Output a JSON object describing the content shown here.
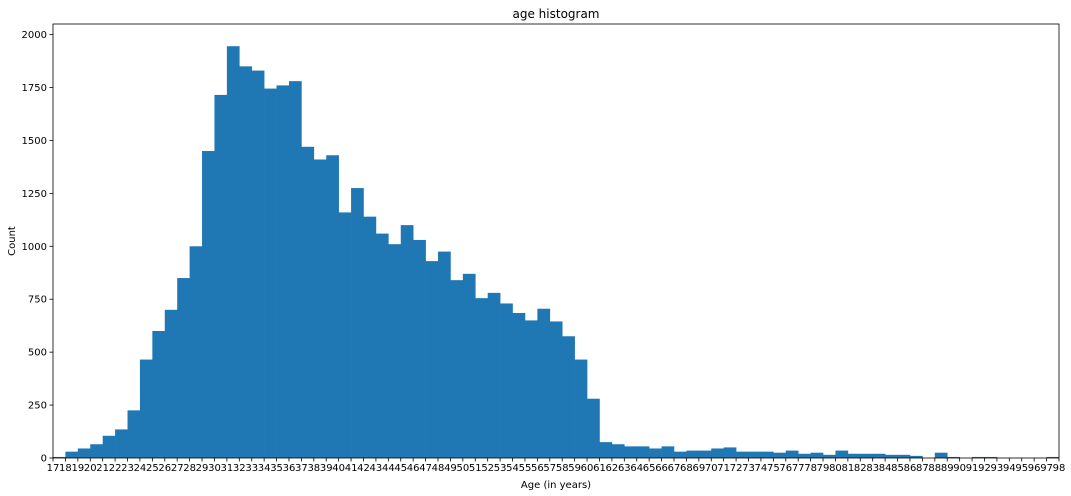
{
  "chart_data": {
    "type": "bar",
    "title": "age histogram",
    "xlabel": "Age (in years)",
    "ylabel": "Count",
    "xlim": [
      17,
      98
    ],
    "ylim": [
      0,
      2050
    ],
    "yticks": [
      0,
      250,
      500,
      750,
      1000,
      1250,
      1500,
      1750,
      2000
    ],
    "xticks": [
      17,
      18,
      19,
      20,
      21,
      22,
      23,
      24,
      25,
      26,
      27,
      28,
      29,
      30,
      31,
      32,
      33,
      34,
      35,
      36,
      37,
      38,
      39,
      40,
      41,
      42,
      43,
      44,
      45,
      46,
      47,
      48,
      49,
      50,
      51,
      52,
      53,
      54,
      55,
      56,
      57,
      58,
      59,
      60,
      61,
      62,
      63,
      64,
      65,
      66,
      67,
      68,
      69,
      70,
      71,
      72,
      73,
      74,
      75,
      76,
      77,
      78,
      79,
      80,
      81,
      82,
      83,
      84,
      85,
      86,
      87,
      88,
      89,
      90,
      91,
      92,
      93,
      94,
      95,
      96,
      97,
      98
    ],
    "bar_color": "#1f77b4",
    "bin_edges": [
      17,
      18,
      19,
      20,
      21,
      22,
      23,
      24,
      25,
      26,
      27,
      28,
      29,
      30,
      31,
      32,
      33,
      34,
      35,
      36,
      37,
      38,
      39,
      40,
      41,
      42,
      43,
      44,
      45,
      46,
      47,
      48,
      49,
      50,
      51,
      52,
      53,
      54,
      55,
      56,
      57,
      58,
      59,
      60,
      61,
      62,
      63,
      64,
      65,
      66,
      67,
      68,
      69,
      70,
      71,
      72,
      73,
      74,
      75,
      76,
      77,
      78,
      79,
      80,
      81,
      82,
      83,
      84,
      85,
      86,
      87,
      88,
      89,
      90,
      91,
      92,
      93,
      94,
      95,
      96,
      97,
      98
    ],
    "values": [
      5,
      30,
      45,
      65,
      105,
      135,
      225,
      465,
      600,
      700,
      850,
      1000,
      1450,
      1715,
      1945,
      1850,
      1830,
      1745,
      1760,
      1780,
      1470,
      1410,
      1430,
      1160,
      1275,
      1140,
      1060,
      1010,
      1100,
      1030,
      930,
      975,
      840,
      870,
      755,
      780,
      730,
      685,
      650,
      705,
      645,
      575,
      465,
      280,
      75,
      65,
      55,
      55,
      45,
      55,
      30,
      35,
      35,
      45,
      50,
      30,
      30,
      30,
      25,
      35,
      20,
      25,
      15,
      35,
      20,
      20,
      20,
      15,
      15,
      10,
      0,
      25,
      5,
      0,
      5,
      5,
      0,
      0,
      0,
      0,
      5
    ]
  }
}
